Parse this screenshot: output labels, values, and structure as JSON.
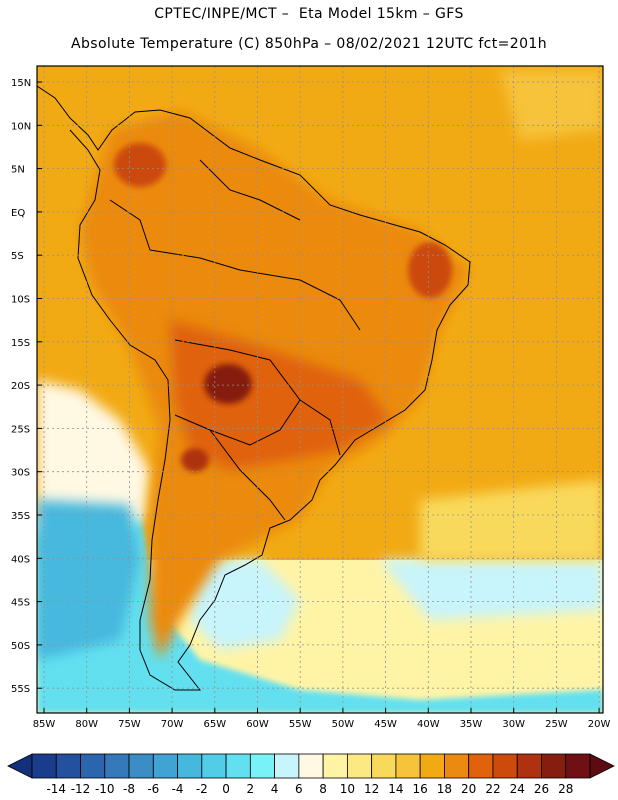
{
  "header": {
    "line1": "CPTEC/INPE/MCT –  Eta Model 15km – GFS",
    "line2": "Absolute Temperature (C) 850hPa – 08/02/2021 12UTC fct=201h"
  },
  "map": {
    "variable": "Absolute Temperature",
    "units": "C",
    "level": "850hPa",
    "lat_labels": [
      "15N",
      "10N",
      "5N",
      "EQ",
      "5S",
      "10S",
      "15S",
      "20S",
      "25S",
      "30S",
      "35S",
      "40S",
      "45S",
      "50S",
      "55S"
    ],
    "lon_labels": [
      "85W",
      "80W",
      "75W",
      "70W",
      "65W",
      "60W",
      "55W",
      "50W",
      "45W",
      "40W",
      "35W",
      "30W",
      "25W",
      "20W"
    ]
  },
  "colorbar": {
    "labels": [
      "-14",
      "-12",
      "-10",
      "-8",
      "-6",
      "-4",
      "-2",
      "0",
      "2",
      "4",
      "6",
      "8",
      "10",
      "12",
      "14",
      "16",
      "18",
      "20",
      "22",
      "24",
      "26",
      "28"
    ],
    "colors": [
      "#1a3c8c",
      "#23519d",
      "#2a65ad",
      "#3679ba",
      "#3b8dc6",
      "#40a3d3",
      "#46b8de",
      "#52cde8",
      "#62e0f0",
      "#78f2f7",
      "#c8f4fb",
      "#fff8e3",
      "#fff4a6",
      "#fde984",
      "#f9d95c",
      "#f6c33b",
      "#f2aa14",
      "#eb8a10",
      "#e0620c",
      "#cc4a0c",
      "#ae3110",
      "#861e0f",
      "#6f1114"
    ],
    "underflow_color": "#13307a",
    "overflow_color": "#5e0a12"
  },
  "colors": {
    "border": "#000000",
    "grid": "#909090"
  }
}
